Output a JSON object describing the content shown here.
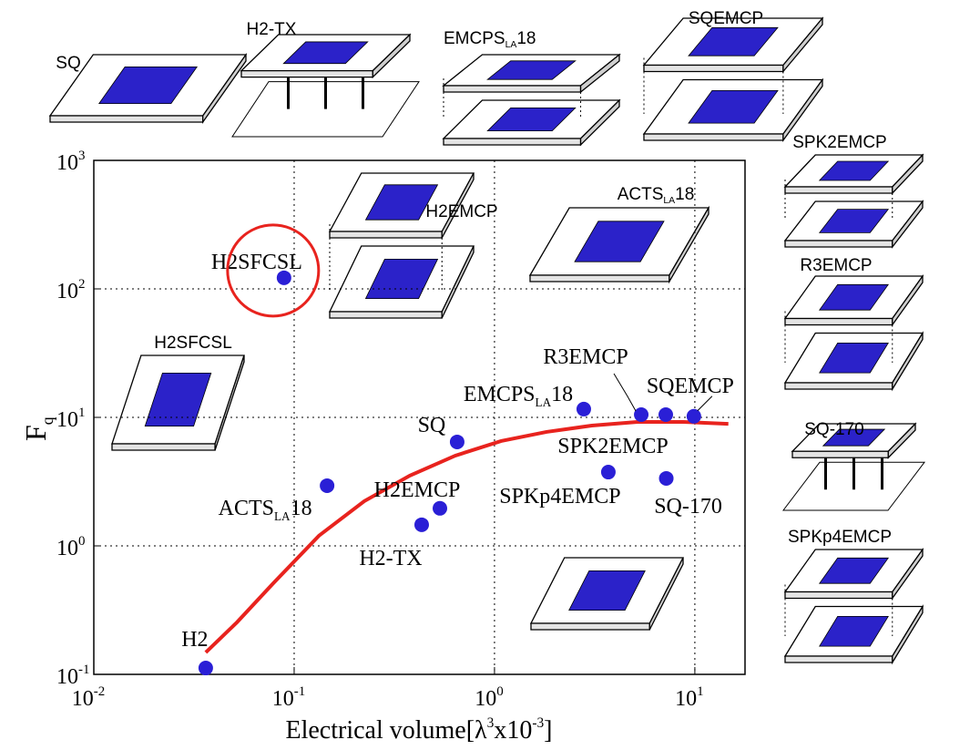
{
  "chart_data": {
    "type": "scatter",
    "x_label": [
      "Electrical volume[λ",
      "3",
      "x10",
      "-3",
      "]"
    ],
    "y_label": [
      "F",
      "q"
    ],
    "log_x": true,
    "log_y": true,
    "grid": true,
    "xlim": [
      0.01,
      17.8
    ],
    "ylim": [
      0.1,
      1000
    ],
    "xticks": [
      {
        "value": 0.01,
        "label": "10",
        "exponent": "-2"
      },
      {
        "value": 0.1,
        "label": "10",
        "exponent": "-1"
      },
      {
        "value": 1,
        "label": "10",
        "exponent": "0"
      },
      {
        "value": 10,
        "label": "10",
        "exponent": "1"
      }
    ],
    "yticks": [
      {
        "value": 0.1,
        "label": "10",
        "exponent": "-1"
      },
      {
        "value": 1,
        "label": "10",
        "exponent": "0"
      },
      {
        "value": 10,
        "label": "10",
        "exponent": "1"
      },
      {
        "value": 100,
        "label": "10",
        "exponent": "2"
      },
      {
        "value": 1000,
        "label": "10",
        "exponent": "3"
      }
    ],
    "points": {
      "color": "#2a1fd6",
      "labels": [
        [
          "H2"
        ],
        [
          "H2SFCSL"
        ],
        [
          "ACTS",
          "LA",
          "18"
        ],
        [
          "H2-TX"
        ],
        [
          "H2EMCP"
        ],
        [
          "SQ"
        ],
        [
          "EMCPS",
          "LA",
          "18"
        ],
        [
          "SPKp4EMCP"
        ],
        [
          "R3EMCP"
        ],
        [
          "SPK2EMCP"
        ],
        [
          "SQ-170"
        ],
        [
          "SQEMCP"
        ]
      ],
      "x": [
        0.0362,
        0.089,
        0.146,
        0.433,
        0.534,
        0.651,
        2.79,
        3.7,
        5.4,
        7.16,
        7.2,
        9.89
      ],
      "y": [
        0.112,
        122,
        2.94,
        1.46,
        1.96,
        6.44,
        11.6,
        3.75,
        10.5,
        10.5,
        3.35,
        10.2
      ]
    },
    "curve": {
      "color": "#e8231e",
      "x": [
        0.0362,
        0.0518,
        0.0786,
        0.133,
        0.224,
        0.378,
        0.638,
        1.08,
        1.82,
        3.06,
        5.17,
        8.73,
        14.7
      ],
      "y": [
        0.148,
        0.254,
        0.511,
        1.2,
        2.23,
        3.52,
        5.04,
        6.55,
        7.71,
        8.63,
        9.22,
        9.22,
        8.91
      ]
    }
  },
  "illustrations": [
    {
      "label": [
        "SQ"
      ]
    },
    {
      "label": [
        "H2-TX"
      ]
    },
    {
      "label": [
        "EMCPS",
        "LA",
        "18"
      ]
    },
    {
      "label": [
        "SQEMCP"
      ]
    },
    {
      "label": [
        "SPK2EMCP"
      ]
    },
    {
      "label": [
        "R3EMCP"
      ]
    },
    {
      "label": [
        "SQ-170"
      ]
    },
    {
      "label": [
        "SPKp4EMCP"
      ]
    },
    {
      "label": [
        "H2EMCP"
      ]
    },
    {
      "label": [
        "ACTS",
        "LA",
        "18"
      ]
    },
    {
      "label": [
        "H2SFCSL"
      ]
    }
  ]
}
